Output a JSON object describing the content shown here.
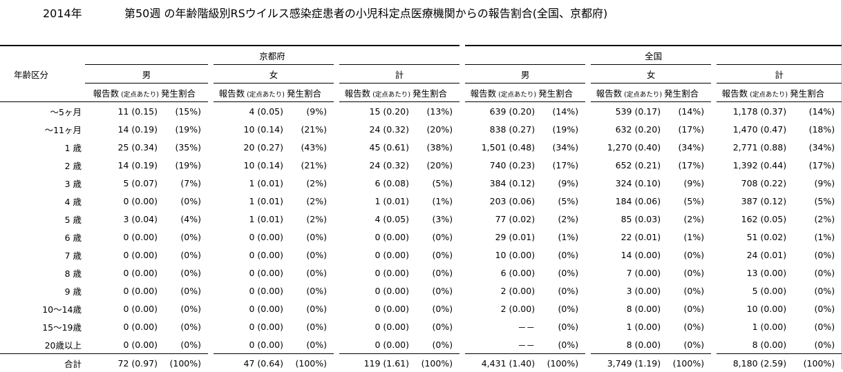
{
  "header": {
    "year": "2014年",
    "title": "第50週 の年齢階級別RSウイルス感染症患者の小児科定点医療機関からの報告割合(全国、京都府)"
  },
  "table": {
    "age_header": "年齢区分",
    "regions": [
      "京都府",
      "全国"
    ],
    "sexes": [
      "男",
      "女",
      "計"
    ],
    "sub": {
      "count": "報告数",
      "per": "(定点あたり)",
      "rate": "発生割合"
    },
    "rows": [
      {
        "age": "～5ヶ月",
        "c": [
          "11 (0.15)",
          "(15%)",
          "4 (0.05)",
          "(9%)",
          "15 (0.20)",
          "(13%)",
          "639 (0.20)",
          "(14%)",
          "539 (0.17)",
          "(14%)",
          "1,178 (0.37)",
          "(14%)"
        ]
      },
      {
        "age": "～11ヶ月",
        "c": [
          "14 (0.19)",
          "(19%)",
          "10 (0.14)",
          "(21%)",
          "24 (0.32)",
          "(20%)",
          "838 (0.27)",
          "(19%)",
          "632 (0.20)",
          "(17%)",
          "1,470 (0.47)",
          "(18%)"
        ]
      },
      {
        "age": "1 歳",
        "c": [
          "25 (0.34)",
          "(35%)",
          "20 (0.27)",
          "(43%)",
          "45 (0.61)",
          "(38%)",
          "1,501 (0.48)",
          "(34%)",
          "1,270 (0.40)",
          "(34%)",
          "2,771 (0.88)",
          "(34%)"
        ]
      },
      {
        "age": "2 歳",
        "c": [
          "14 (0.19)",
          "(19%)",
          "10 (0.14)",
          "(21%)",
          "24 (0.32)",
          "(20%)",
          "740 (0.23)",
          "(17%)",
          "652 (0.21)",
          "(17%)",
          "1,392 (0.44)",
          "(17%)"
        ]
      },
      {
        "age": "3 歳",
        "c": [
          "5 (0.07)",
          "(7%)",
          "1 (0.01)",
          "(2%)",
          "6 (0.08)",
          "(5%)",
          "384 (0.12)",
          "(9%)",
          "324 (0.10)",
          "(9%)",
          "708 (0.22)",
          "(9%)"
        ]
      },
      {
        "age": "4 歳",
        "c": [
          "0 (0.00)",
          "(0%)",
          "1 (0.01)",
          "(2%)",
          "1 (0.01)",
          "(1%)",
          "203 (0.06)",
          "(5%)",
          "184 (0.06)",
          "(5%)",
          "387 (0.12)",
          "(5%)"
        ]
      },
      {
        "age": "5 歳",
        "c": [
          "3 (0.04)",
          "(4%)",
          "1 (0.01)",
          "(2%)",
          "4 (0.05)",
          "(3%)",
          "77 (0.02)",
          "(2%)",
          "85 (0.03)",
          "(2%)",
          "162 (0.05)",
          "(2%)"
        ]
      },
      {
        "age": "6 歳",
        "c": [
          "0 (0.00)",
          "(0%)",
          "0 (0.00)",
          "(0%)",
          "0 (0.00)",
          "(0%)",
          "29 (0.01)",
          "(1%)",
          "22 (0.01)",
          "(1%)",
          "51 (0.02)",
          "(1%)"
        ]
      },
      {
        "age": "7 歳",
        "c": [
          "0 (0.00)",
          "(0%)",
          "0 (0.00)",
          "(0%)",
          "0 (0.00)",
          "(0%)",
          "10 (0.00)",
          "(0%)",
          "14 (0.00)",
          "(0%)",
          "24 (0.01)",
          "(0%)"
        ]
      },
      {
        "age": "8 歳",
        "c": [
          "0 (0.00)",
          "(0%)",
          "0 (0.00)",
          "(0%)",
          "0 (0.00)",
          "(0%)",
          "6 (0.00)",
          "(0%)",
          "7 (0.00)",
          "(0%)",
          "13 (0.00)",
          "(0%)"
        ]
      },
      {
        "age": "9 歳",
        "c": [
          "0 (0.00)",
          "(0%)",
          "0 (0.00)",
          "(0%)",
          "0 (0.00)",
          "(0%)",
          "2 (0.00)",
          "(0%)",
          "3 (0.00)",
          "(0%)",
          "5 (0.00)",
          "(0%)"
        ]
      },
      {
        "age": "10～14歳",
        "c": [
          "0 (0.00)",
          "(0%)",
          "0 (0.00)",
          "(0%)",
          "0 (0.00)",
          "(0%)",
          "2 (0.00)",
          "(0%)",
          "8 (0.00)",
          "(0%)",
          "10 (0.00)",
          "(0%)"
        ]
      },
      {
        "age": "15～19歳",
        "c": [
          "0 (0.00)",
          "(0%)",
          "0 (0.00)",
          "(0%)",
          "0 (0.00)",
          "(0%)",
          "－－",
          "(0%)",
          "1 (0.00)",
          "(0%)",
          "1 (0.00)",
          "(0%)"
        ]
      },
      {
        "age": "20歳以上",
        "c": [
          "0 (0.00)",
          "(0%)",
          "0 (0.00)",
          "(0%)",
          "0 (0.00)",
          "(0%)",
          "－－",
          "(0%)",
          "8 (0.00)",
          "(0%)",
          "8 (0.00)",
          "(0%)"
        ]
      }
    ],
    "total": {
      "age": "合計",
      "c": [
        "72 (0.97)",
        "(100%)",
        "47 (0.64)",
        "(100%)",
        "119 (1.61)",
        "(100%)",
        "4,431 (1.40)",
        "(100%)",
        "3,749 (1.19)",
        "(100%)",
        "8,180 (2.59)",
        "(100%)"
      ]
    }
  }
}
